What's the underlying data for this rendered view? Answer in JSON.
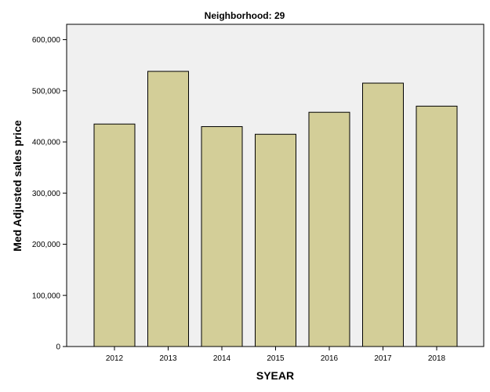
{
  "chart_data": {
    "type": "bar",
    "title": "Neighborhood: 29",
    "xlabel": "SYEAR",
    "ylabel": "Med Adjusted sales price",
    "categories": [
      "2012",
      "2013",
      "2014",
      "2015",
      "2016",
      "2017",
      "2018"
    ],
    "values": [
      435000,
      538000,
      430000,
      415000,
      458000,
      515000,
      470000
    ],
    "ylim": [
      0,
      630000
    ],
    "yticks": [
      0,
      100000,
      200000,
      300000,
      400000,
      500000,
      600000
    ],
    "ytick_labels": [
      "0",
      "100,000",
      "200,000",
      "300,000",
      "400,000",
      "500,000",
      "600,000"
    ],
    "grid": false,
    "legend": "none",
    "colors": {
      "bar_fill": "#d3ce98",
      "bar_stroke": "#000000",
      "plot_background": "#f0f0f0",
      "page_background": "#ffffff"
    }
  }
}
